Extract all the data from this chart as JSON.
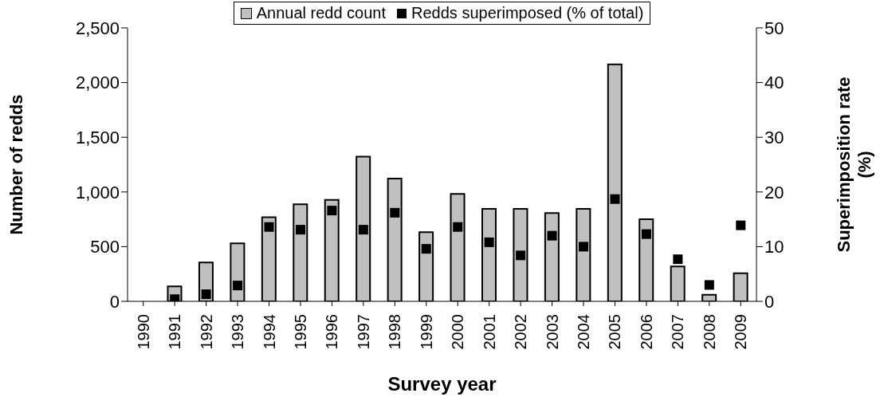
{
  "chart_data": {
    "type": "bar",
    "xlabel": "Survey year",
    "ylabel": "Number of redds",
    "y2label": "Superimposition rate (%)",
    "categories": [
      "1990",
      "1991",
      "1992",
      "1993",
      "1994",
      "1995",
      "1996",
      "1997",
      "1998",
      "1999",
      "2000",
      "2001",
      "2002",
      "2003",
      "2004",
      "2005",
      "2006",
      "2007",
      "2008",
      "2009"
    ],
    "series": [
      {
        "name": "Annual redd count",
        "color": "#c0c0c0",
        "values": [
          null,
          137,
          356,
          531,
          769,
          887,
          928,
          1322,
          1122,
          632,
          982,
          846,
          846,
          807,
          846,
          2167,
          750,
          318,
          60,
          257
        ]
      },
      {
        "name": "Redds superimposed (% of total)",
        "type": "scatter",
        "axis": "y2",
        "color": "#000000",
        "values": [
          null,
          0.4,
          1.3,
          2.9,
          13.6,
          13.1,
          16.6,
          13.1,
          16.2,
          9.6,
          13.6,
          10.8,
          8.4,
          12.0,
          10.0,
          18.7,
          12.3,
          7.7,
          3.0,
          13.9
        ]
      }
    ],
    "ylim": [
      0,
      2500
    ],
    "yticks": [
      0,
      {
        "value": 500,
        "label": "500"
      },
      {
        "value": 1000,
        "label": "1,000"
      },
      {
        "value": 1500,
        "label": "1,500"
      },
      {
        "value": 2000,
        "label": "2,000"
      },
      {
        "value": 2500,
        "label": "2,500"
      }
    ],
    "y2lim": [
      0,
      50
    ],
    "y2ticks": [
      0,
      10,
      20,
      30,
      40,
      50
    ],
    "marker": "square",
    "legend": "top",
    "grid": false
  }
}
